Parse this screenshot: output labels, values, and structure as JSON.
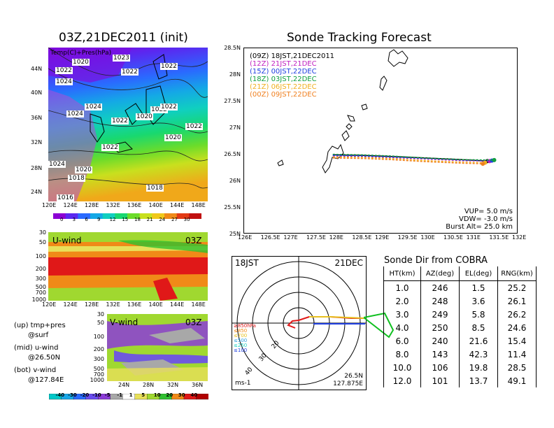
{
  "surface_panel": {
    "title": "03Z,21DEC2011 (init)",
    "inner_label": "Temp(C)+Pres(hPa)",
    "isobar_labels": [
      "1020",
      "1023",
      "1022",
      "1022",
      "1022",
      "1024",
      "1024",
      "1024",
      "1020",
      "1022",
      "1022",
      "1022",
      "1020",
      "1022",
      "1024",
      "1020",
      "1018",
      "1018",
      "1016",
      "1022"
    ],
    "lat_ticks": [
      "44N",
      "40N",
      "36N",
      "32N",
      "28N",
      "24N"
    ],
    "lon_ticks": [
      "120E",
      "124E",
      "128E",
      "132E",
      "136E",
      "140E",
      "144E",
      "148E"
    ],
    "colorbar_labels": [
      "0",
      "3",
      "6",
      "9",
      "12",
      "15",
      "18",
      "21",
      "24",
      "27",
      "30"
    ],
    "colorbar_colors": [
      "#8c00d4",
      "#5a28f0",
      "#2a6aff",
      "#14a8e6",
      "#10cfc0",
      "#18d870",
      "#6cdc2a",
      "#c8e01e",
      "#f0c81a",
      "#f08a18",
      "#e23a14",
      "#c01010"
    ]
  },
  "wind_panels": {
    "u_label": "U-wind",
    "u_time": "03Z",
    "u_pressure_ticks": [
      "30",
      "50",
      "100",
      "200",
      "300",
      "500",
      "700",
      "1000"
    ],
    "u_lon_ticks": [
      "120E",
      "124E",
      "128E",
      "132E",
      "136E",
      "140E",
      "144E",
      "148E"
    ],
    "v_label": "V-wind",
    "v_time": "03Z",
    "v_pressure_ticks": [
      "30",
      "50",
      "100",
      "200",
      "300",
      "500",
      "700",
      "1000"
    ],
    "v_lat_ticks": [
      "24N",
      "28N",
      "32N",
      "36N"
    ],
    "legend_lines": [
      "(up) tmp+pres",
      "@surf",
      "(mid) u-wind",
      "@26.50N",
      "(bot) v-wind",
      "@127.84E"
    ],
    "colorbar_labels": [
      "-40",
      "-30",
      "-20",
      "-10",
      "-5",
      "-1",
      "1",
      "5",
      "10",
      "20",
      "30",
      "40"
    ],
    "colorbar_colors": [
      "#00c8c8",
      "#18a8e8",
      "#2a6aff",
      "#6a4cf0",
      "#8c3cd8",
      "#a8a8a8",
      "#ffffff",
      "#e8e05a",
      "#a0d830",
      "#30c030",
      "#f08a18",
      "#e01818",
      "#b00000"
    ]
  },
  "tracking": {
    "title": "Sonde Tracking Forecast",
    "lat_ticks": [
      "28.5N",
      "28N",
      "27.5N",
      "27N",
      "26.5N",
      "26N",
      "25.5N",
      "25N"
    ],
    "lon_ticks": [
      "126E",
      "126.5E",
      "127E",
      "127.5E",
      "128E",
      "128.5E",
      "129E",
      "129.5E",
      "130E",
      "130.5E",
      "131E",
      "131.5E",
      "132E"
    ],
    "legend": [
      {
        "code": "(09Z)",
        "text": "18JST,21DEC2011",
        "color": "#000000"
      },
      {
        "code": "(12Z)",
        "text": "21JST,21DEC",
        "color": "#c020c0"
      },
      {
        "code": "(15Z)",
        "text": "00JST,22DEC",
        "color": "#2040e0"
      },
      {
        "code": "(18Z)",
        "text": "03JST,22DEC",
        "color": "#10a040"
      },
      {
        "code": "(21Z)",
        "text": "06JST,22DEC",
        "color": "#f0b020"
      },
      {
        "code": "(00Z)",
        "text": "09JST,22DEC",
        "color": "#f08020"
      }
    ],
    "params": [
      "VUP= 5.0 m/s",
      "VDW= -3.0 m/s",
      "Burst Alt= 25.0 km"
    ],
    "tracks": [
      {
        "color": "#000000",
        "points": [
          [
            127.95,
            26.48
          ],
          [
            128.6,
            26.47
          ],
          [
            129.2,
            26.45
          ],
          [
            130.0,
            26.42
          ],
          [
            130.8,
            26.39
          ],
          [
            131.35,
            26.36
          ]
        ]
      },
      {
        "color": "#c020c0",
        "points": [
          [
            127.95,
            26.46
          ],
          [
            128.6,
            26.45
          ],
          [
            129.2,
            26.43
          ],
          [
            130.0,
            26.4
          ],
          [
            130.8,
            26.37
          ],
          [
            131.4,
            26.36
          ]
        ]
      },
      {
        "color": "#2040e0",
        "points": [
          [
            127.95,
            26.47
          ],
          [
            128.6,
            26.46
          ],
          [
            129.2,
            26.44
          ],
          [
            130.0,
            26.41
          ],
          [
            130.8,
            26.38
          ],
          [
            131.45,
            26.37
          ]
        ]
      },
      {
        "color": "#10a040",
        "points": [
          [
            127.95,
            26.49
          ],
          [
            128.6,
            26.48
          ],
          [
            129.2,
            26.46
          ],
          [
            130.0,
            26.42
          ],
          [
            130.8,
            26.39
          ],
          [
            131.5,
            26.38
          ]
        ]
      },
      {
        "color": "#f0b020",
        "points": [
          [
            127.95,
            26.44
          ],
          [
            128.6,
            26.43
          ],
          [
            129.2,
            26.41
          ],
          [
            130.0,
            26.37
          ],
          [
            130.8,
            26.34
          ],
          [
            131.3,
            26.33
          ]
        ]
      },
      {
        "color": "#f08020",
        "points": [
          [
            127.95,
            26.42
          ],
          [
            128.6,
            26.41
          ],
          [
            129.2,
            26.39
          ],
          [
            130.0,
            26.35
          ],
          [
            130.8,
            26.32
          ],
          [
            131.25,
            26.31
          ]
        ]
      }
    ]
  },
  "polar": {
    "time": "18JST",
    "date": "21DEC",
    "levels": [
      "≥850hPa",
      "≤850",
      "≤700",
      "≤500",
      "≤250",
      "≤100"
    ],
    "level_colors": [
      "#e01818",
      "#f08a18",
      "#e8c020",
      "#30a0e0",
      "#20d0c0",
      "#2040e0"
    ],
    "ring_labels": [
      "10",
      "20",
      "30",
      "40"
    ],
    "unit": "ms-1",
    "location": [
      "26.5N",
      "127.875E"
    ]
  },
  "sonde_table": {
    "title": "Sonde Dir from COBRA",
    "headers": [
      "HT(km)",
      "AZ(deg)",
      "EL(deg)",
      "RNG(km)"
    ],
    "rows": [
      [
        "1.0",
        "246",
        "1.5",
        "25.2"
      ],
      [
        "2.0",
        "248",
        "3.6",
        "26.1"
      ],
      [
        "3.0",
        "249",
        "5.8",
        "26.2"
      ],
      [
        "4.0",
        "250",
        "8.5",
        "24.6"
      ],
      [
        "6.0",
        "240",
        "21.6",
        "15.4"
      ],
      [
        "8.0",
        "143",
        "42.3",
        "11.4"
      ],
      [
        "10.0",
        "106",
        "19.8",
        "28.5"
      ],
      [
        "12.0",
        "101",
        "13.7",
        "49.1"
      ]
    ]
  }
}
